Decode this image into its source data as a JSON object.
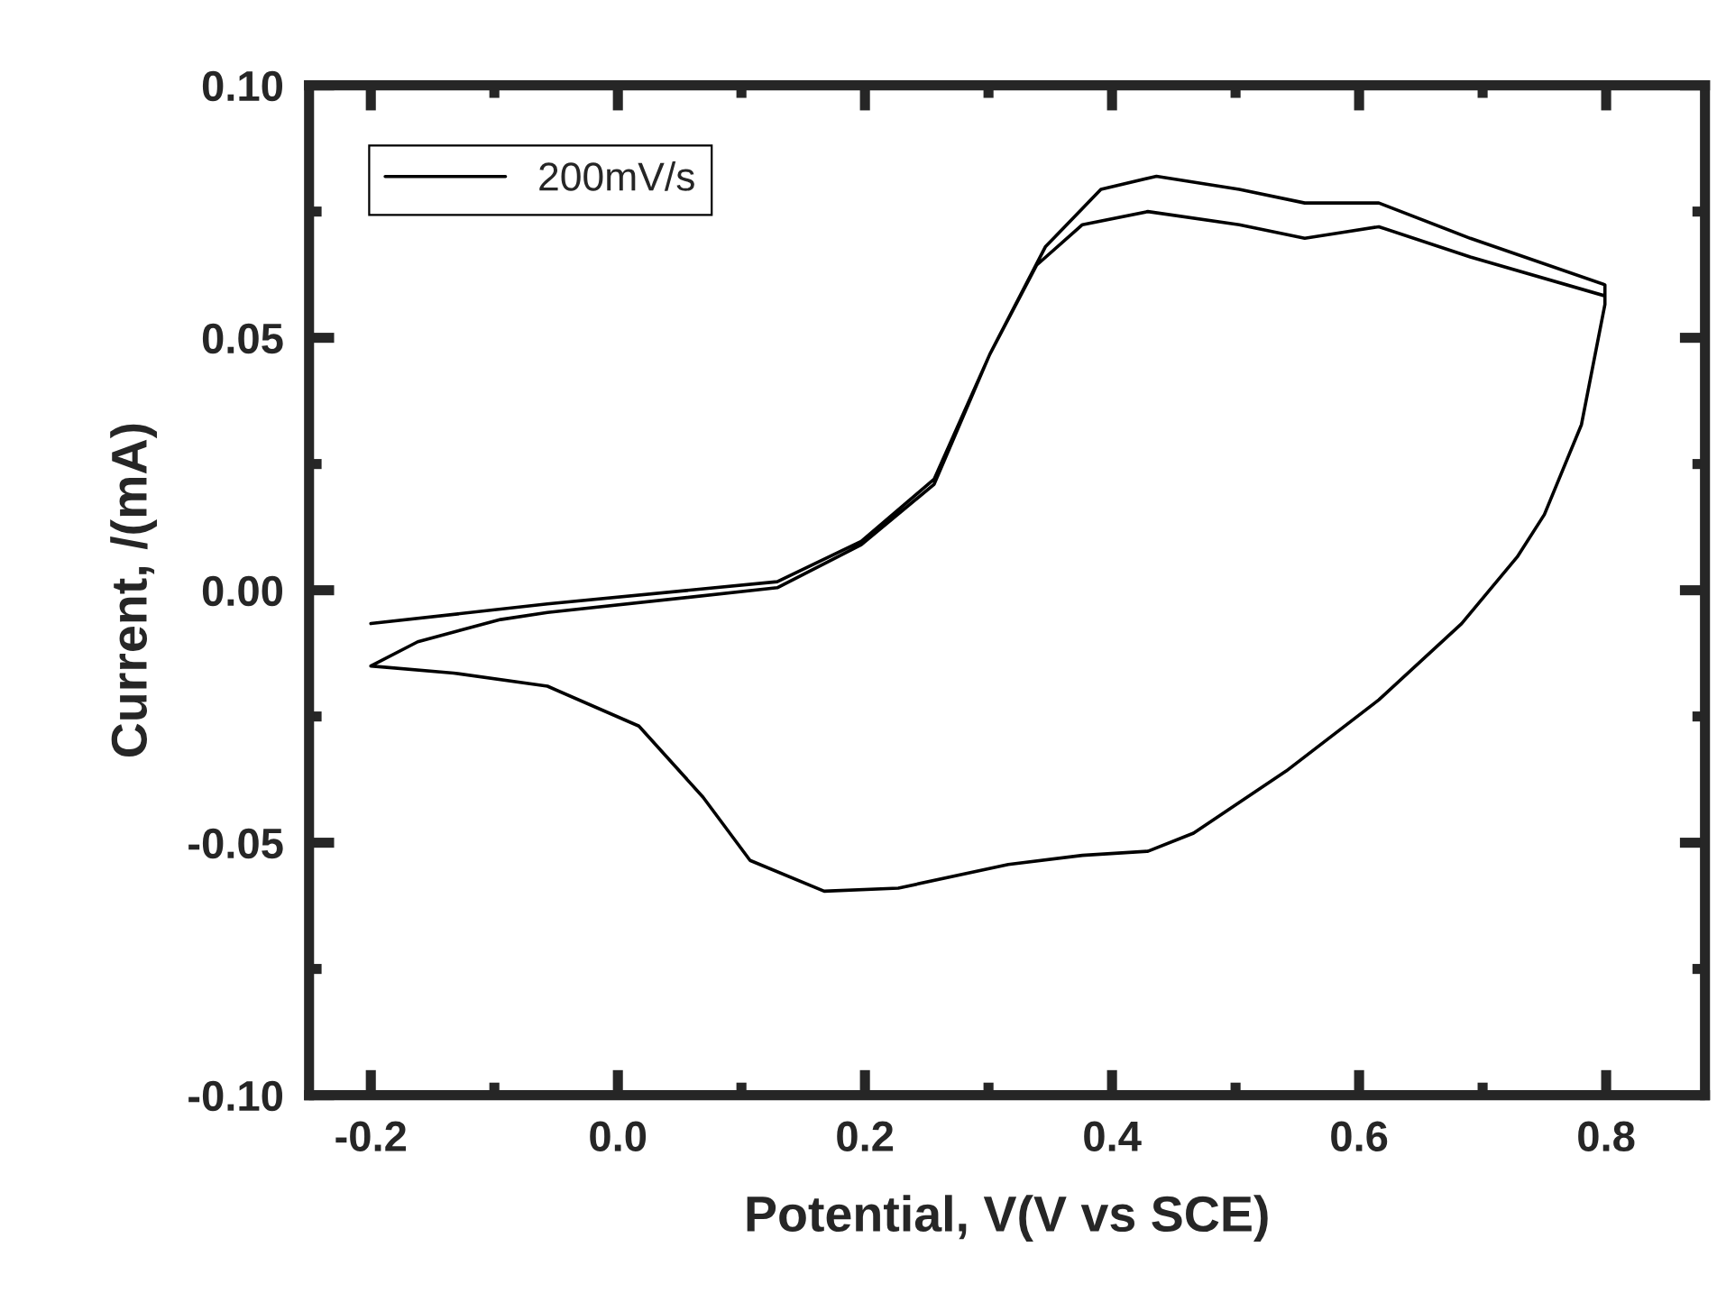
{
  "chart_data": {
    "type": "line",
    "xlabel": "Potential, V(V vs SCE)",
    "ylabel": "Current, /(mA)",
    "xlim": [
      -0.25,
      0.88
    ],
    "ylim": [
      -0.1,
      0.1
    ],
    "xticks": [
      {
        "value": -0.2,
        "label": "-0.2"
      },
      {
        "value": -0.1,
        "label": null
      },
      {
        "value": 0.0,
        "label": "0.0"
      },
      {
        "value": 0.1,
        "label": null
      },
      {
        "value": 0.2,
        "label": "0.2"
      },
      {
        "value": 0.3,
        "label": null
      },
      {
        "value": 0.4,
        "label": "0.4"
      },
      {
        "value": 0.5,
        "label": null
      },
      {
        "value": 0.6,
        "label": "0.6"
      },
      {
        "value": 0.7,
        "label": null
      },
      {
        "value": 0.8,
        "label": "0.8"
      }
    ],
    "yticks": [
      {
        "value": -0.1,
        "label": "-0.10"
      },
      {
        "value": -0.075,
        "label": null
      },
      {
        "value": -0.05,
        "label": "-0.05"
      },
      {
        "value": -0.025,
        "label": null
      },
      {
        "value": 0.0,
        "label": "0.00"
      },
      {
        "value": 0.025,
        "label": null
      },
      {
        "value": 0.05,
        "label": "0.05"
      },
      {
        "value": 0.075,
        "label": null
      },
      {
        "value": 0.1,
        "label": "0.10"
      }
    ],
    "grid": false,
    "legend": "top left",
    "marker": "none",
    "line_style": "solid",
    "series": [
      {
        "name": "200mV/s",
        "color": "#000000",
        "x": [
          -0.2,
          -0.057,
          0.129,
          0.197,
          0.256,
          0.301,
          0.346,
          0.391,
          0.436,
          0.503,
          0.556,
          0.616,
          0.69,
          0.799,
          0.799,
          0.78,
          0.75,
          0.728,
          0.683,
          0.616,
          0.541,
          0.466,
          0.429,
          0.376,
          0.316,
          0.227,
          0.167,
          0.107,
          0.069,
          0.017,
          -0.057,
          -0.133,
          -0.2,
          -0.162,
          -0.095,
          -0.057,
          0.129,
          0.197,
          0.256,
          0.301,
          0.339,
          0.376,
          0.429,
          0.503,
          0.556,
          0.616,
          0.69,
          0.799,
          0.799,
          0.78,
          0.75,
          0.728,
          0.683,
          0.616,
          0.541,
          0.466,
          0.429,
          0.376,
          0.316,
          0.227,
          0.167,
          0.107,
          0.069,
          0.017,
          -0.057,
          -0.133,
          -0.2
        ],
        "values": [
          -0.0066,
          -0.0027,
          0.0017,
          0.0097,
          0.022,
          0.0467,
          0.068,
          0.0794,
          0.082,
          0.0794,
          0.0767,
          0.0767,
          0.0697,
          0.0605,
          0.0566,
          0.0328,
          0.015,
          0.0066,
          -0.0066,
          -0.0217,
          -0.0358,
          -0.0481,
          -0.0517,
          -0.0525,
          -0.0543,
          -0.059,
          -0.0596,
          -0.0535,
          -0.041,
          -0.0269,
          -0.019,
          -0.0164,
          -0.015,
          -0.0102,
          -0.0058,
          -0.0044,
          0.0005,
          0.009,
          0.021,
          0.0467,
          0.0644,
          0.0724,
          0.075,
          0.0724,
          0.0697,
          0.072,
          0.066,
          0.0583,
          0.0566,
          0.0328,
          0.015,
          0.0066,
          -0.0066,
          -0.0217,
          -0.0358,
          -0.0481,
          -0.0517,
          -0.0525,
          -0.0543,
          -0.059,
          -0.0596,
          -0.0535,
          -0.041,
          -0.0269,
          -0.019,
          -0.0164,
          -0.015
        ]
      }
    ]
  }
}
